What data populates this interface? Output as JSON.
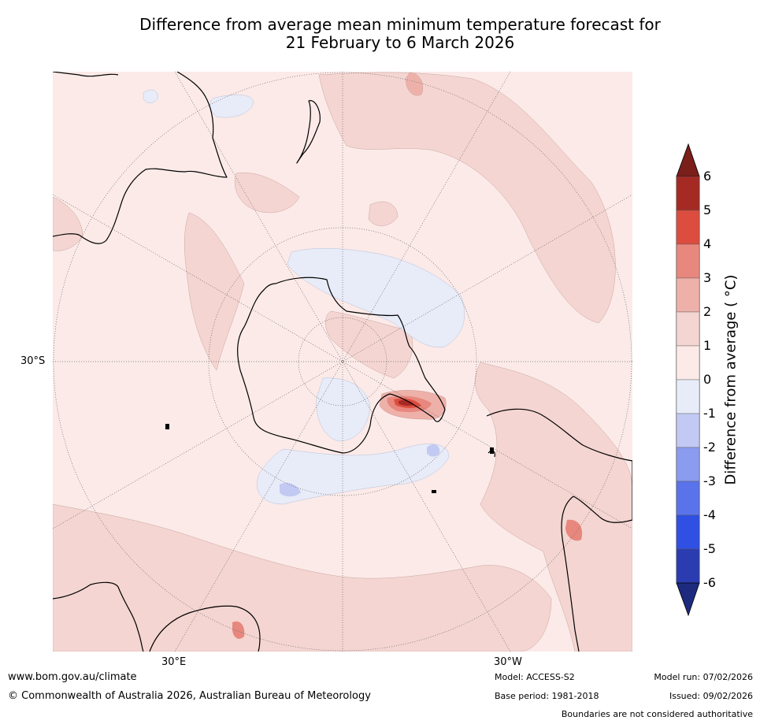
{
  "title": {
    "line1": "Difference from average mean minimum temperature forecast for",
    "line2": "21 February to 6 March 2026"
  },
  "map": {
    "projection": "south-polar-stereographic",
    "graticule_labels": {
      "left_lat": "30°S",
      "bottom_left_lon": "30°E",
      "bottom_right_lon": "30°W"
    },
    "features": [
      "antarctica",
      "south-america",
      "africa",
      "australia",
      "new-zealand",
      "positive-anomaly-regions",
      "negative-anomaly-regions",
      "warm-anomaly-peak-antarctic-peninsula"
    ]
  },
  "colorbar": {
    "title": "Difference from average ( °C)",
    "ticks": [
      "6",
      "5",
      "4",
      "3",
      "2",
      "1",
      "0",
      "-1",
      "-2",
      "-3",
      "-4",
      "-5",
      "-6"
    ],
    "levels": [
      {
        "range": "> 6",
        "color": "#7a1f1a"
      },
      {
        "range": "5 to 6",
        "color": "#a52a24"
      },
      {
        "range": "4 to 5",
        "color": "#dc4d3f"
      },
      {
        "range": "3 to 4",
        "color": "#e8877d"
      },
      {
        "range": "2 to 3",
        "color": "#eeb1aa"
      },
      {
        "range": "1 to 2",
        "color": "#f4d5d1"
      },
      {
        "range": "0 to 1",
        "color": "#fbeae8"
      },
      {
        "range": "-1 to 0",
        "color": "#e8ecf8"
      },
      {
        "range": "-2 to -1",
        "color": "#c2c9f2"
      },
      {
        "range": "-3 to -2",
        "color": "#8b9bef"
      },
      {
        "range": "-4 to -3",
        "color": "#5a73ea"
      },
      {
        "range": "-5 to -4",
        "color": "#2f50e2"
      },
      {
        "range": "-6 to -5",
        "color": "#2a3cb0"
      },
      {
        "range": "< -6",
        "color": "#1e2a7e"
      }
    ]
  },
  "footer": {
    "website": "www.bom.gov.au/climate",
    "copyright": "© Commonwealth of Australia 2026, Australian Bureau of Meteorology",
    "model": "Model: ACCESS-S2",
    "base_period": "Base period: 1981-2018",
    "model_run": "Model run: 07/02/2026",
    "issued": "Issued: 09/02/2026",
    "disclaimer": "Boundaries are not considered authoritative"
  }
}
